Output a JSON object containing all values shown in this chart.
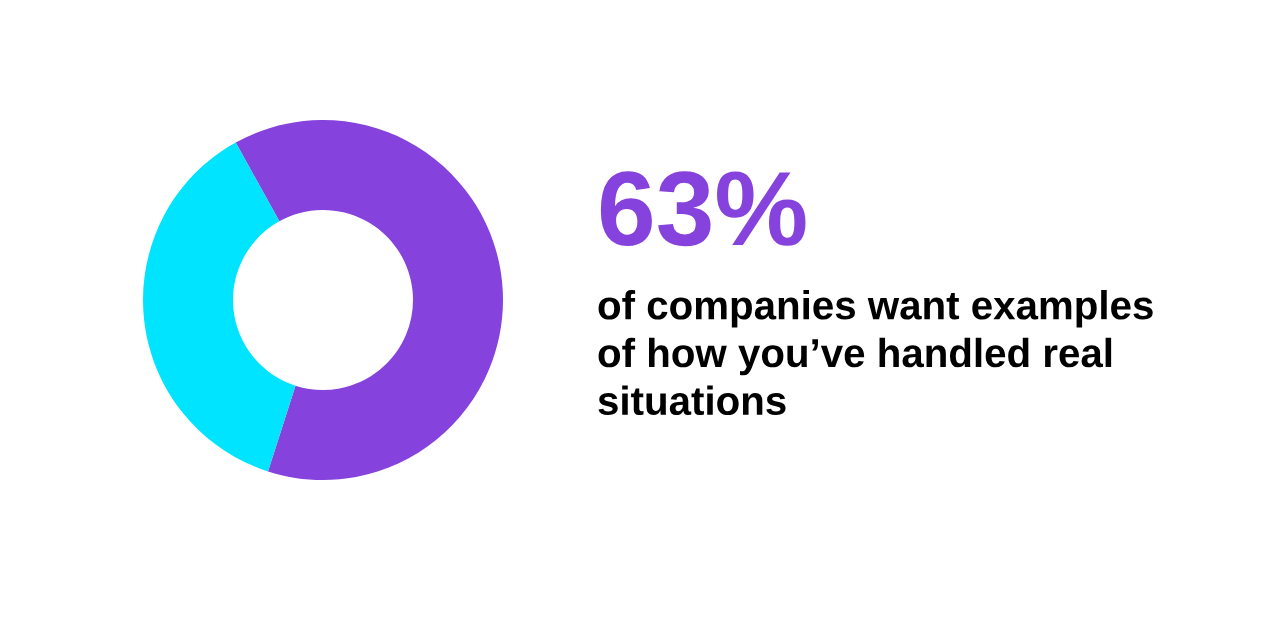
{
  "chart_data": {
    "type": "donut",
    "title": "63%",
    "subtitle": "of companies want examples\nof how you’ve handled real\nsituations",
    "categories": [
      null,
      null
    ],
    "values": [
      63,
      37
    ],
    "colors": [
      "#8642dc",
      "#00e4ff"
    ]
  }
}
